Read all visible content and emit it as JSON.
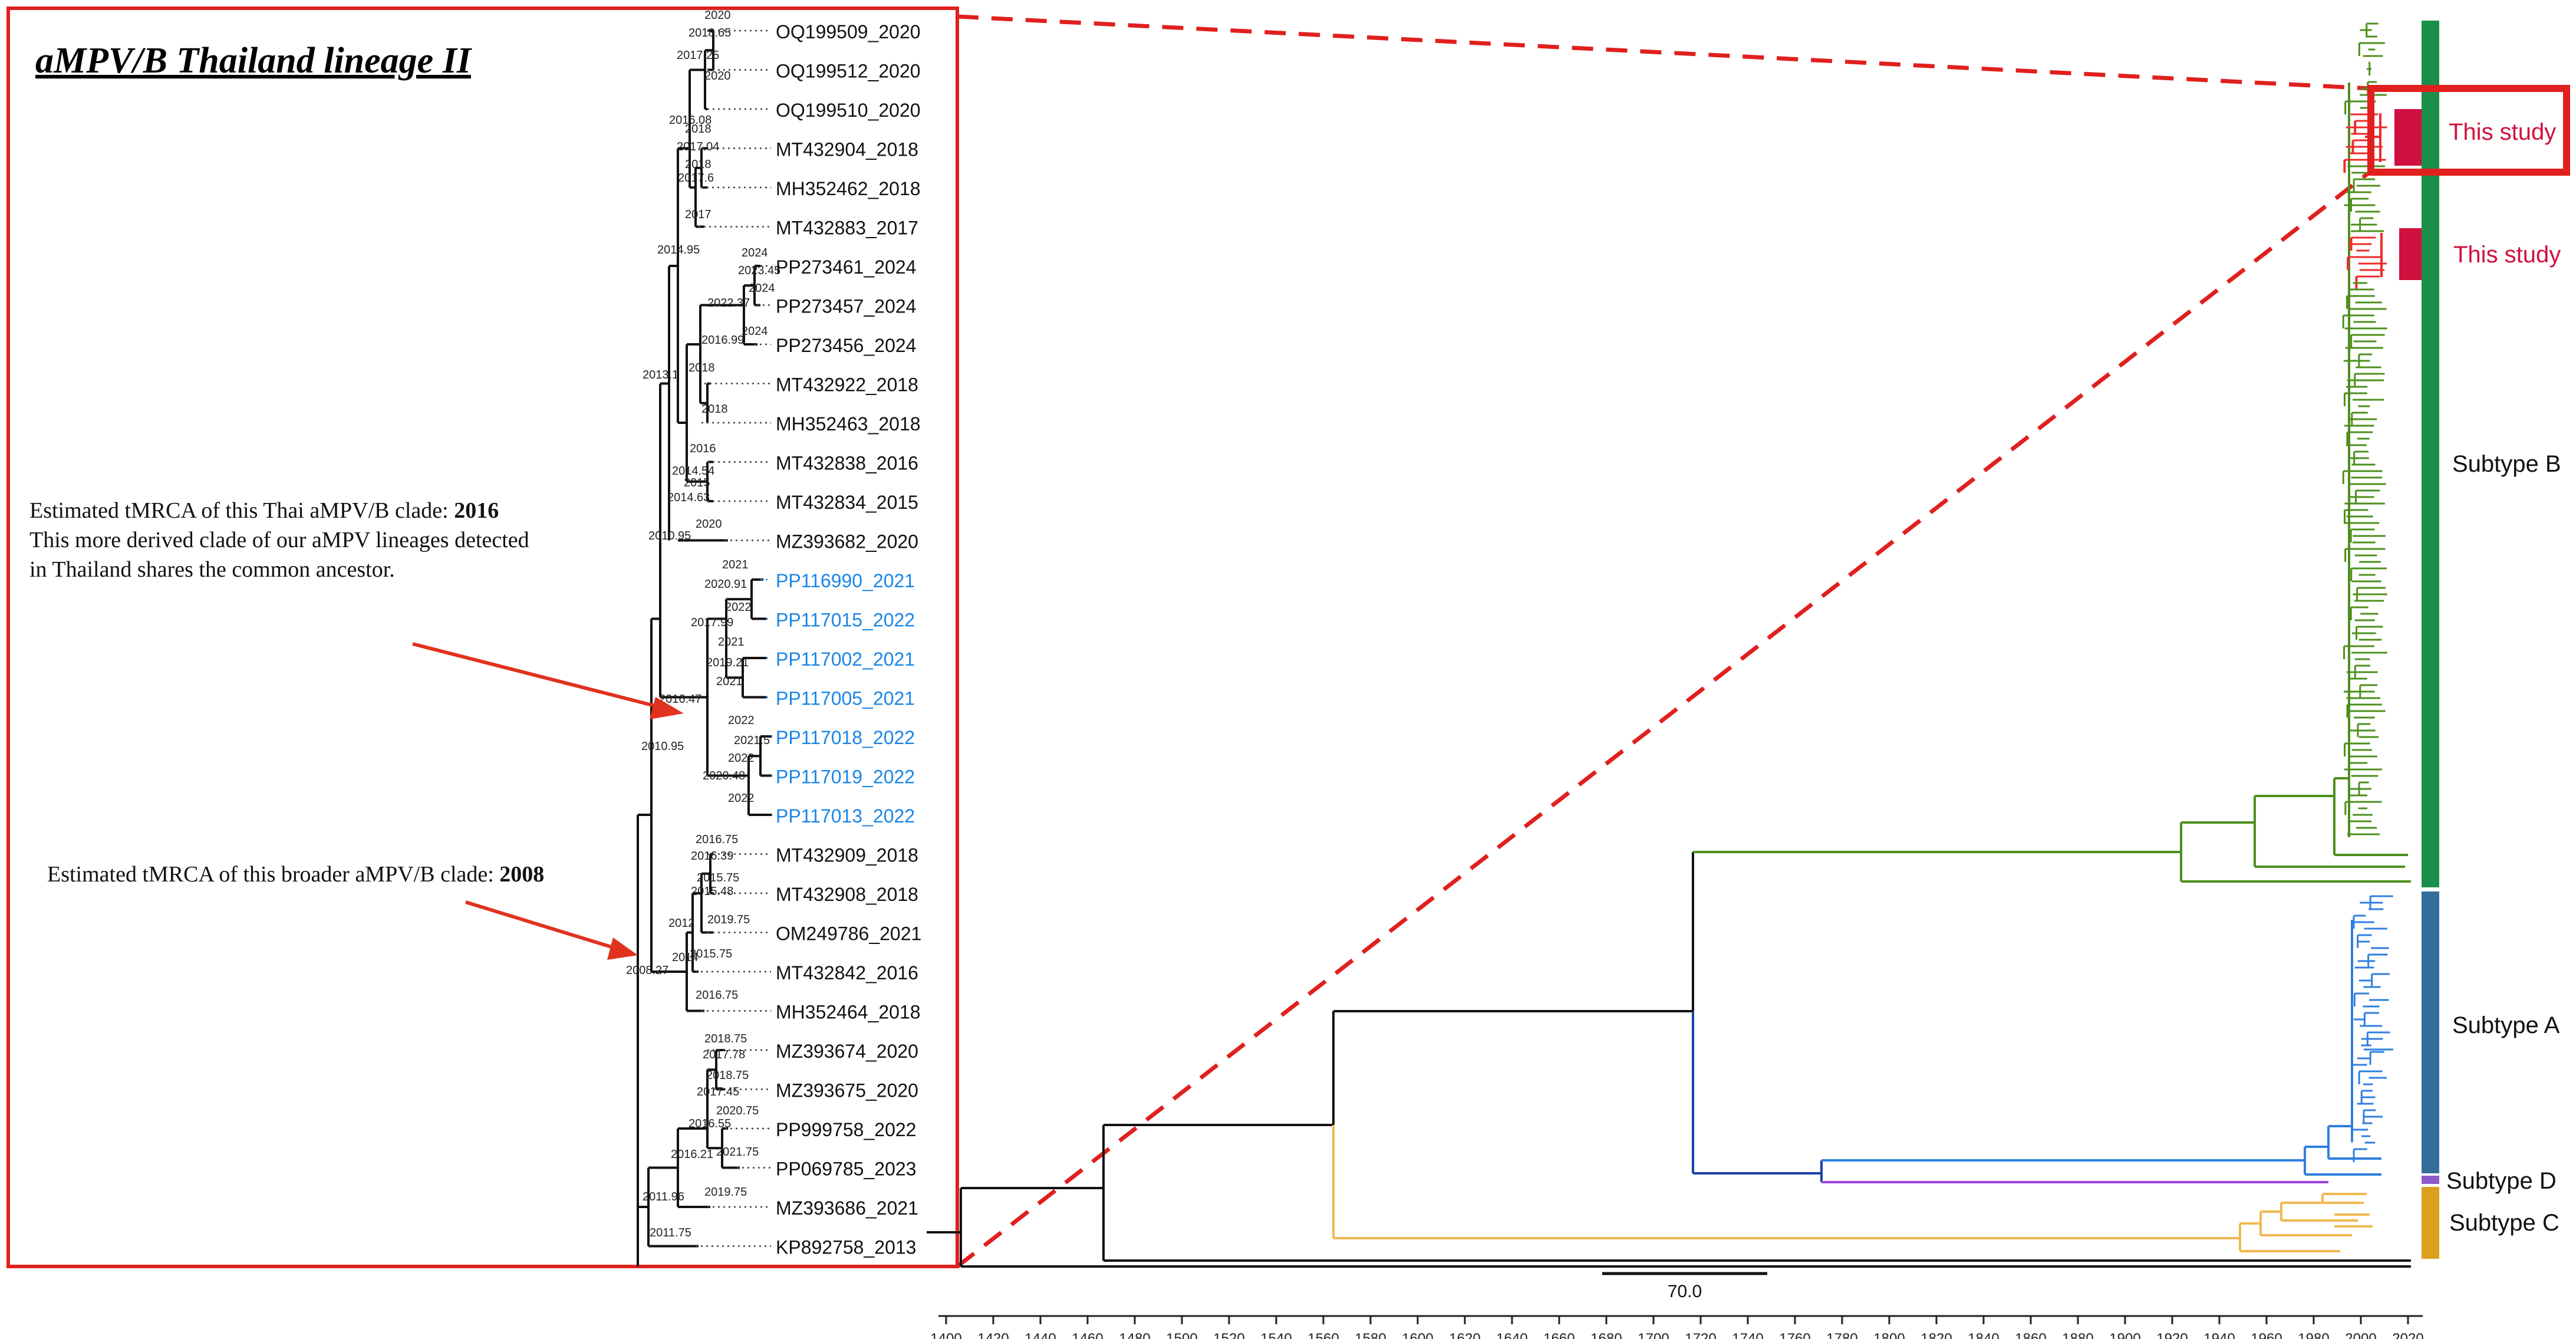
{
  "inset": {
    "title": "aMPV/B Thailand lineage II",
    "border_color": "#e0201e",
    "taxa": [
      {
        "label": "OQ199509_2020",
        "highlight": false
      },
      {
        "label": "OQ199512_2020",
        "highlight": false
      },
      {
        "label": "OQ199510_2020",
        "highlight": false
      },
      {
        "label": "MT432904_2018",
        "highlight": false
      },
      {
        "label": "MH352462_2018",
        "highlight": false
      },
      {
        "label": "MT432883_2017",
        "highlight": false
      },
      {
        "label": "PP273461_2024",
        "highlight": false
      },
      {
        "label": "PP273457_2024",
        "highlight": false
      },
      {
        "label": "PP273456_2024",
        "highlight": false
      },
      {
        "label": "MT432922_2018",
        "highlight": false
      },
      {
        "label": "MH352463_2018",
        "highlight": false
      },
      {
        "label": "MT432838_2016",
        "highlight": false
      },
      {
        "label": "MT432834_2015",
        "highlight": false
      },
      {
        "label": "MZ393682_2020",
        "highlight": false
      },
      {
        "label": "PP116990_2021",
        "highlight": true
      },
      {
        "label": "PP117015_2022",
        "highlight": true
      },
      {
        "label": "PP117002_2021",
        "highlight": true
      },
      {
        "label": "PP117005_2021",
        "highlight": true
      },
      {
        "label": "PP117018_2022",
        "highlight": true
      },
      {
        "label": "PP117019_2022",
        "highlight": true
      },
      {
        "label": "PP117013_2022",
        "highlight": true
      },
      {
        "label": "MT432909_2018",
        "highlight": false
      },
      {
        "label": "MT432908_2018",
        "highlight": false
      },
      {
        "label": "OM249786_2021",
        "highlight": false
      },
      {
        "label": "MT432842_2016",
        "highlight": false
      },
      {
        "label": "MH352464_2018",
        "highlight": false
      },
      {
        "label": "MZ393674_2020",
        "highlight": false
      },
      {
        "label": "MZ393675_2020",
        "highlight": false
      },
      {
        "label": "PP999758_2022",
        "highlight": false
      },
      {
        "label": "PP069785_2023",
        "highlight": false
      },
      {
        "label": "MZ393686_2021",
        "highlight": false
      },
      {
        "label": "KP892758_2013",
        "highlight": false
      }
    ],
    "node_labels": [
      "2020",
      "2018.65",
      "2017.25",
      "2020",
      "2016.08",
      "2018",
      "2017.04",
      "2018",
      "2017.6",
      "2017",
      "2014.95",
      "2024",
      "2023.45",
      "2024",
      "2022.37",
      "2016.99",
      "2024",
      "2018",
      "2013.1",
      "2018",
      "2016",
      "2015",
      "2014.54",
      "2014.63",
      "2010.95",
      "2020",
      "2021",
      "2020.91",
      "2022",
      "2017.99",
      "2021",
      "2019.21",
      "2021",
      "2016.47",
      "2022",
      "2021.5",
      "2022",
      "2020.48",
      "2022",
      "2010.95",
      "2016.75",
      "2016.39",
      "2015.75",
      "2015.48",
      "2019.75",
      "2012",
      "2015.75",
      "2014",
      "2016.75",
      "2008.27",
      "2018.75",
      "2017.78",
      "2018.75",
      "2017.45",
      "2020.75",
      "2016.55",
      "2021.75",
      "2016.21",
      "2019.75",
      "2011.96",
      "2011.75"
    ],
    "annotations": [
      {
        "line1": "Estimated tMRCA of this Thai aMPV/B clade: ",
        "line1_value": "2016",
        "line2": "This more derived clade of our aMPV lineages detected",
        "line3": "in Thailand shares the common ancestor."
      },
      {
        "line1": "Estimated tMRCA of this broader aMPV/B clade: ",
        "line1_value": "2008"
      }
    ],
    "annotation_arrow_color": "#e0321e",
    "highlight_color": "#1a86e6"
  },
  "main_tree": {
    "scale_bar_label": "70.0",
    "axis_ticks": [
      "1400",
      "1420",
      "1440",
      "1460",
      "1480",
      "1500",
      "1520",
      "1540",
      "1560",
      "1580",
      "1600",
      "1620",
      "1640",
      "1660",
      "1680",
      "1700",
      "1720",
      "1740",
      "1760",
      "1780",
      "1800",
      "1820",
      "1840",
      "1860",
      "1880",
      "1900",
      "1920",
      "1940",
      "1960",
      "1980",
      "2000",
      "2020"
    ],
    "this_study_labels": [
      "This study",
      "This study"
    ],
    "subtypes": [
      {
        "label": "Subtype B",
        "color": "#1a8f4a"
      },
      {
        "label": "Subtype A",
        "color": "#336e9a"
      },
      {
        "label": "Subtype D",
        "color": "#8e59c9"
      },
      {
        "label": "Subtype C",
        "color": "#dba11c"
      }
    ],
    "colors": {
      "subtype_b_branches": "#4d8f1c",
      "subtype_a_branches": "#2f7fe0",
      "subtype_d_branch": "#9b45d8",
      "subtype_c_branches": "#f2b850",
      "this_study_bar": "#d0103e",
      "this_study_branches": "#ef2a2a",
      "ad_stem": "#1a3fa8"
    }
  }
}
